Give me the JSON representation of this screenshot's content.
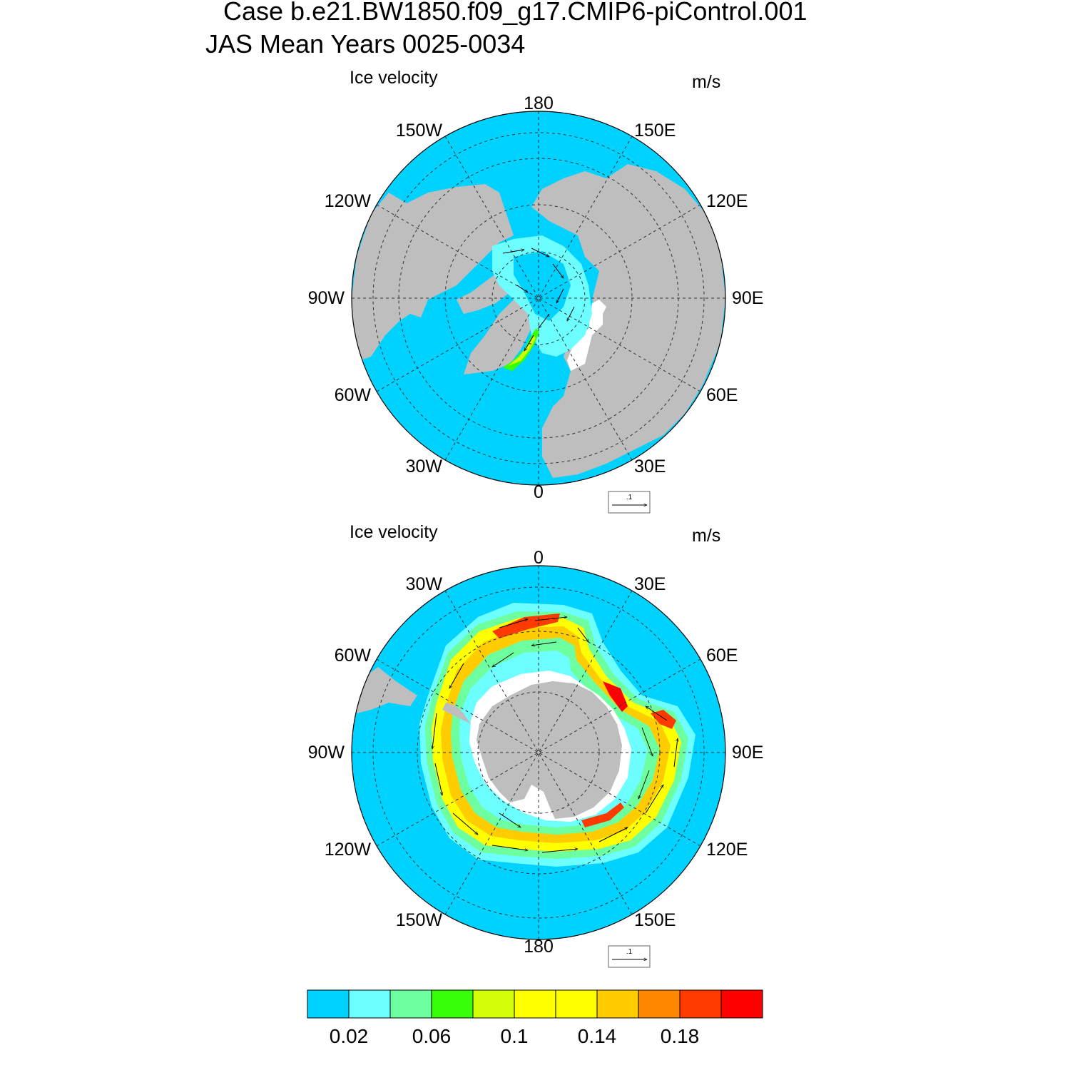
{
  "title_line1": "Case b.e21.BW1850.f09_g17.CMIP6-piControl.001",
  "title_line2": "JAS Mean   Years 0025-0034",
  "panels": [
    {
      "id": "nh",
      "left_label": "Ice velocity",
      "units": "m/s",
      "reference_vector": ".1",
      "lon_labels": {
        "top": "180",
        "bottom": "0",
        "left": "90W",
        "right": "90E",
        "upper_left_1": "150W",
        "upper_left_2": "120W",
        "upper_right_1": "150E",
        "upper_right_2": "120E",
        "lower_left_1": "60W",
        "lower_left_2": "30W",
        "lower_right_1": "60E",
        "lower_right_2": "30E"
      }
    },
    {
      "id": "sh",
      "left_label": "Ice velocity",
      "units": "m/s",
      "reference_vector": ".1",
      "lon_labels": {
        "top": "0",
        "bottom": "180",
        "left": "90W",
        "right": "90E",
        "upper_left_1": "30W",
        "upper_left_2": "60W",
        "upper_right_1": "30E",
        "upper_right_2": "60E",
        "lower_left_1": "120W",
        "lower_left_2": "150W",
        "lower_right_1": "120E",
        "lower_right_2": "150E"
      }
    }
  ],
  "colorbar": {
    "colors": [
      "#00d2ff",
      "#6dffff",
      "#6dff9f",
      "#37ff07",
      "#d2ff07",
      "#ffff00",
      "#ffff00",
      "#ffcc00",
      "#ff8800",
      "#ff3a00",
      "#ff0000"
    ],
    "labels": [
      "0.02",
      "0.06",
      "0.1",
      "0.14",
      "0.18"
    ]
  },
  "colors": {
    "ocean": "#00d2ff",
    "land": "#bebebe"
  }
}
